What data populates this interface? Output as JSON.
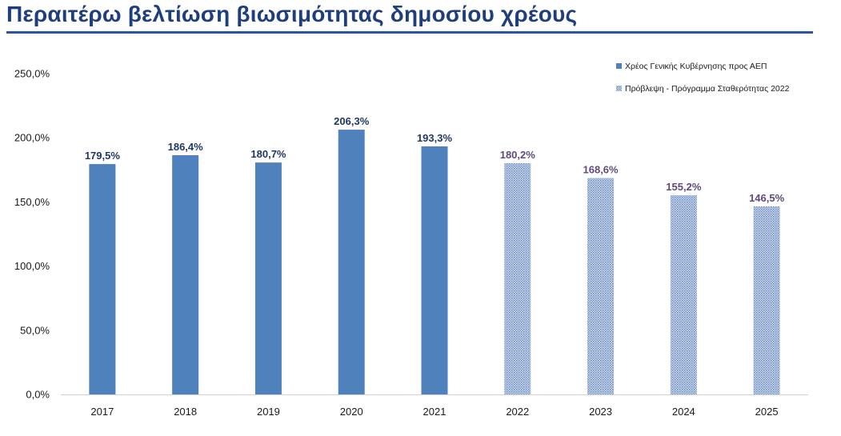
{
  "page": {
    "title": "Περαιτέρω βελτίωση βιωσιμότητας δημοσίου χρέους"
  },
  "colors": {
    "actual": "#4f81bd",
    "forecast": "#9db3d6",
    "actual_label": "#1f3864",
    "forecast_label": "#604a7b",
    "title": "#1f3e7c"
  },
  "chart_data": {
    "type": "bar",
    "title": "",
    "xlabel": "",
    "ylabel": "",
    "ylim": [
      0,
      250
    ],
    "yticks": [
      0,
      50,
      100,
      150,
      200,
      250
    ],
    "ytick_labels": [
      "0,0%",
      "50,0%",
      "100,0%",
      "150,0%",
      "200,0%",
      "250,0%"
    ],
    "grid": false,
    "legend_position": "top-right",
    "categories": [
      "2017",
      "2018",
      "2019",
      "2020",
      "2021",
      "2022",
      "2023",
      "2024",
      "2025"
    ],
    "series": [
      {
        "name": "Χρέος Γενικής Κυβέρνησης προς ΑΕΠ",
        "style": "solid",
        "values": [
          179.5,
          186.4,
          180.7,
          206.3,
          193.3,
          null,
          null,
          null,
          null
        ],
        "labels": [
          "179,5%",
          "186,4%",
          "180,7%",
          "206,3%",
          "193,3%",
          null,
          null,
          null,
          null
        ]
      },
      {
        "name": "Πρόβλεψη - Πρόγραμμα Σταθερότητας 2022",
        "style": "hatched",
        "values": [
          null,
          null,
          null,
          null,
          null,
          180.2,
          168.6,
          155.2,
          146.5
        ],
        "labels": [
          null,
          null,
          null,
          null,
          null,
          "180,2%",
          "168,6%",
          "155,2%",
          "146,5%"
        ]
      }
    ]
  }
}
